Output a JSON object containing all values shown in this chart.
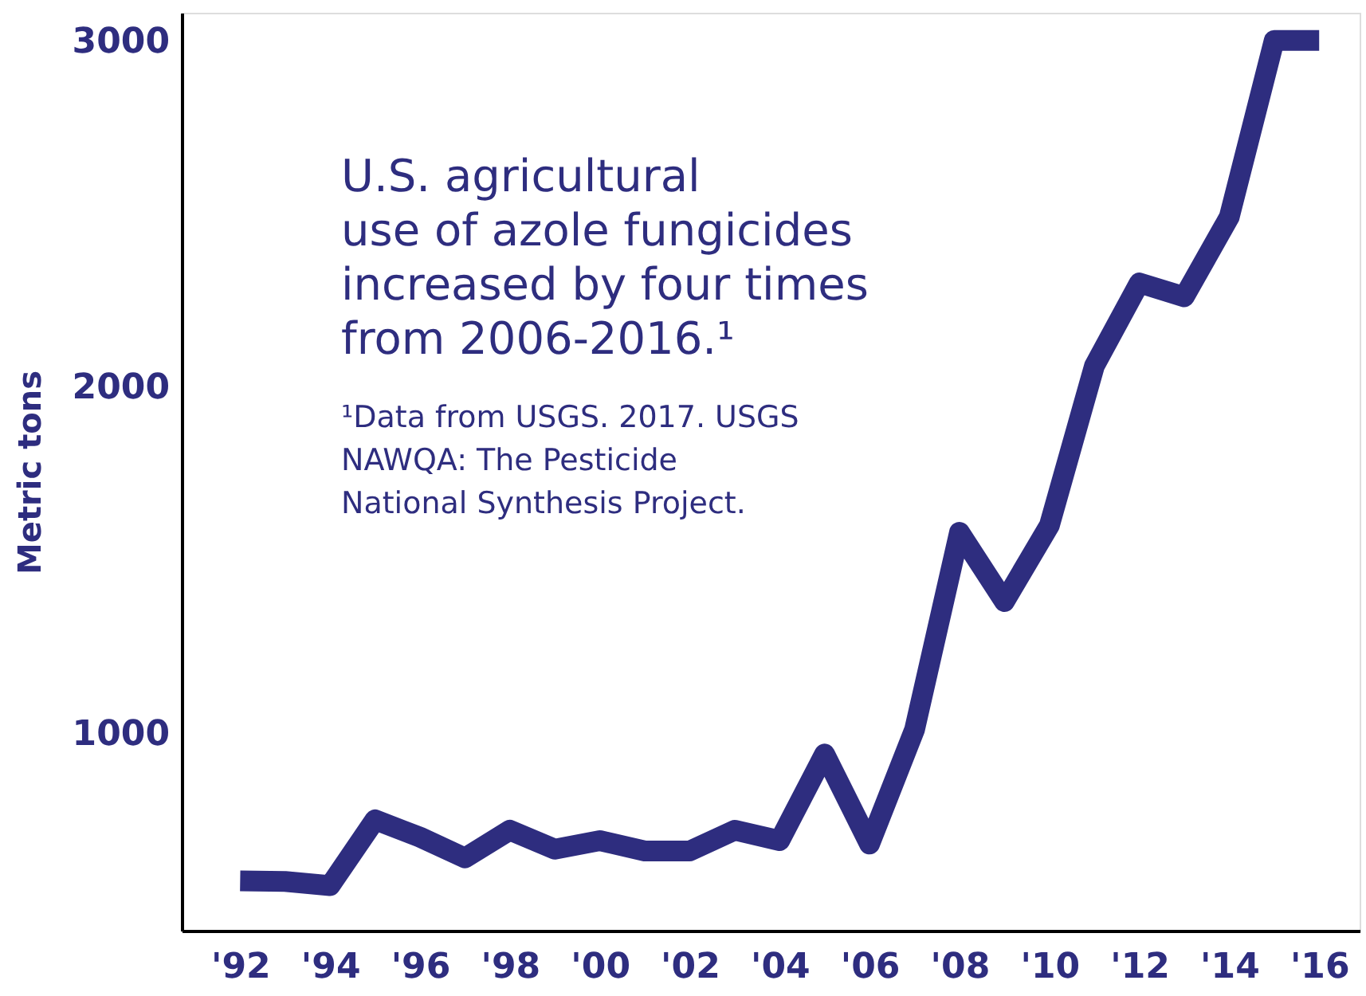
{
  "chart_data": {
    "type": "line",
    "title": "U.S. agricultural\nuse of azole fungicides\nincreased by four times\nfrom 2006-2016.¹",
    "ylabel": "Metric tons",
    "annotations": [
      "¹Data from USGS. 2017. USGS\nNAWQA: The Pesticide\nNational Synthesis Project."
    ],
    "x": [
      1992,
      1993,
      1994,
      1995,
      1996,
      1997,
      1998,
      1999,
      2000,
      2001,
      2002,
      2003,
      2004,
      2005,
      2006,
      2007,
      2008,
      2009,
      2010,
      2011,
      2012,
      2013,
      2014,
      2015,
      2016
    ],
    "series": [
      {
        "color": "#2e2d7f",
        "values": [
          574,
          572,
          560,
          750,
          700,
          640,
          720,
          665,
          690,
          660,
          660,
          720,
          690,
          940,
          680,
          1010,
          1580,
          1380,
          1600,
          2060,
          2300,
          2260,
          2490,
          3000,
          3000
        ]
      }
    ],
    "xlim": [
      1990.7,
      2016.9
    ],
    "ylim": [
      430,
      3080
    ],
    "xticks": [
      {
        "value": 1992,
        "label": "'92"
      },
      {
        "value": 1994,
        "label": "'94"
      },
      {
        "value": 1996,
        "label": "'96"
      },
      {
        "value": 1998,
        "label": "'98"
      },
      {
        "value": 2000,
        "label": "'00"
      },
      {
        "value": 2002,
        "label": "'02"
      },
      {
        "value": 2004,
        "label": "'04"
      },
      {
        "value": 2006,
        "label": "'06"
      },
      {
        "value": 2008,
        "label": "'08"
      },
      {
        "value": 2010,
        "label": "'10"
      },
      {
        "value": 2012,
        "label": "'12"
      },
      {
        "value": 2014,
        "label": "'14"
      },
      {
        "value": 2016,
        "label": "'16"
      }
    ],
    "yticks": [
      1000,
      2000,
      3000
    ],
    "grid": false,
    "legend": false,
    "marker": "none",
    "line_style": "solid"
  }
}
